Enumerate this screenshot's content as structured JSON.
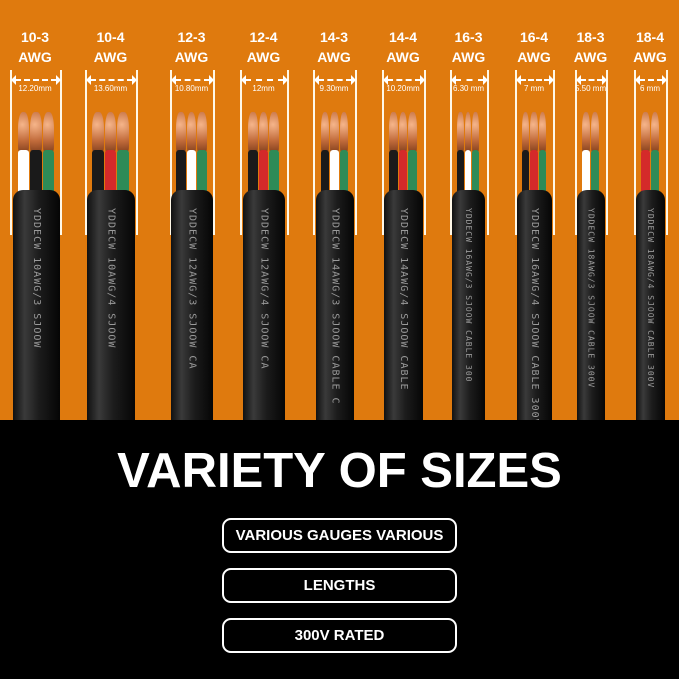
{
  "background_color": "#df7a0e",
  "cables": [
    {
      "gauge": "10-3",
      "unit": "AWG",
      "diameter": "12.20mm",
      "print": "YDDECW 10AWG/3 SJOOW",
      "wires": [
        "#ffffff",
        "#1a1a1a",
        "#2e8b57"
      ]
    },
    {
      "gauge": "10-4",
      "unit": "AWG",
      "diameter": "13.60mm",
      "print": "YDDECW 10AWG/4 SJOOW",
      "wires": [
        "#1a1a1a",
        "#d42a2a",
        "#2e8b57"
      ]
    },
    {
      "gauge": "12-3",
      "unit": "AWG",
      "diameter": "10.80mm",
      "print": "YDDECW 12AWG/3 SJOOW CA",
      "wires": [
        "#1a1a1a",
        "#ffffff",
        "#2e8b57"
      ]
    },
    {
      "gauge": "12-4",
      "unit": "AWG",
      "diameter": "12mm",
      "print": "YDDECW 12AWG/4 SJOOW CA",
      "wires": [
        "#1a1a1a",
        "#d42a2a",
        "#2e8b57"
      ]
    },
    {
      "gauge": "14-3",
      "unit": "AWG",
      "diameter": "9.30mm",
      "print": "YDDECW 14AWG/3 SJOOW CABLE C",
      "wires": [
        "#1a1a1a",
        "#ffffff",
        "#2e8b57"
      ]
    },
    {
      "gauge": "14-4",
      "unit": "AWG",
      "diameter": "10.20mm",
      "print": "YDDECW 14AWG/4 SJOOW CABLE",
      "wires": [
        "#1a1a1a",
        "#d42a2a",
        "#2e8b57"
      ]
    },
    {
      "gauge": "16-3",
      "unit": "AWG",
      "diameter": "6.30 mm",
      "print": "YDDECW 16AWG/3 SJOOW CABLE 300",
      "wires": [
        "#1a1a1a",
        "#ffffff",
        "#2e8b57"
      ]
    },
    {
      "gauge": "16-4",
      "unit": "AWG",
      "diameter": "7 mm",
      "print": "YDDECW 16AWG/4 SJOOW CABLE 300V",
      "wires": [
        "#1a1a1a",
        "#d42a2a",
        "#2e8b57"
      ]
    },
    {
      "gauge": "18-3",
      "unit": "AWG",
      "diameter": "5.50 mm",
      "print": "YDDECW 18AWG/3 SJOOW CABLE 300V",
      "wires": [
        "#ffffff",
        "#2e8b57"
      ]
    },
    {
      "gauge": "18-4",
      "unit": "AWG",
      "diameter": "6 mm",
      "print": "YDDECW 18AWG/4 SJOOW CABLE 300V",
      "wires": [
        "#d42a2a",
        "#2e8b57"
      ]
    }
  ],
  "title": "VARIETY OF SIZES",
  "features": [
    "VARIOUS GAUGES VARIOUS",
    "LENGTHS",
    "300V RATED"
  ]
}
